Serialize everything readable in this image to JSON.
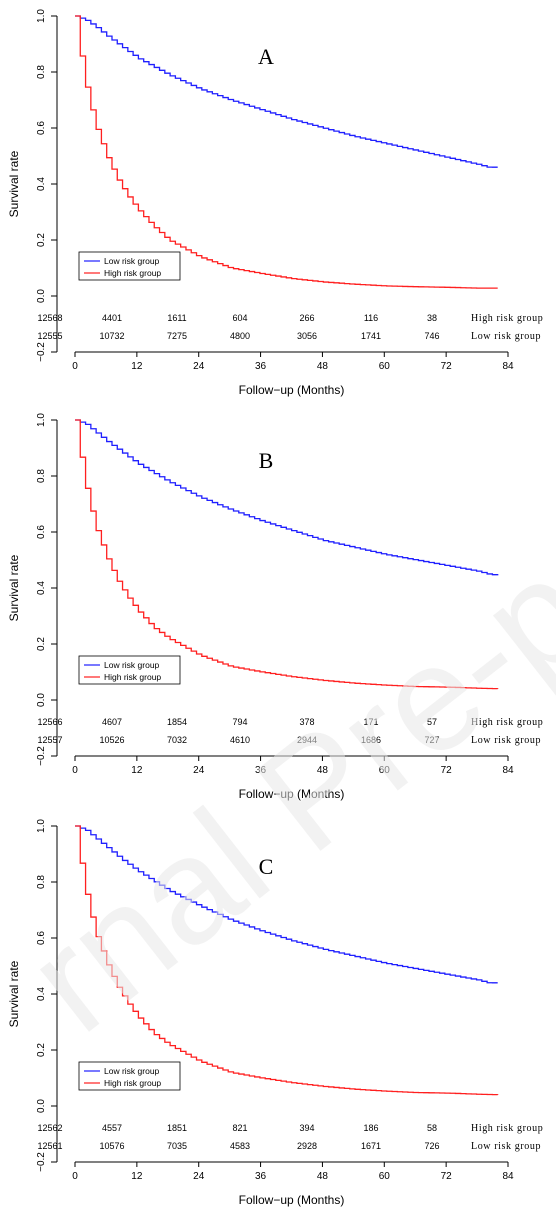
{
  "watermark": {
    "text": "Journal Pre-proof",
    "visible_text": "rnal Pre-pr",
    "color": "#e8e8e8"
  },
  "colors": {
    "low_risk": "#1f1fff",
    "high_risk": "#ff1f1f",
    "axis": "#000000"
  },
  "chart_data": [
    {
      "type": "line",
      "panel_label": "A",
      "ylabel": "Survival rate",
      "xlabel": "Follow−up (Months)",
      "xlim": [
        0,
        84
      ],
      "ylim": [
        -0.2,
        1.0
      ],
      "xticks": [
        "0",
        "12",
        "24",
        "36",
        "48",
        "60",
        "72",
        "84"
      ],
      "yticks": [
        "−0.2",
        "0.0",
        "0.2",
        "0.4",
        "0.6",
        "0.8",
        "1.0"
      ],
      "legend": {
        "position": "bottom-left",
        "entries": [
          "Low risk group",
          "High risk group"
        ]
      },
      "series": [
        {
          "name": "Low risk group",
          "color": "#1f1fff",
          "x": [
            0,
            2,
            4,
            6,
            9,
            12,
            18,
            24,
            30,
            36,
            42,
            48,
            54,
            60,
            66,
            72,
            78,
            80,
            82
          ],
          "values": [
            1.0,
            0.985,
            0.96,
            0.93,
            0.89,
            0.85,
            0.79,
            0.74,
            0.7,
            0.665,
            0.63,
            0.6,
            0.57,
            0.545,
            0.52,
            0.495,
            0.47,
            0.46,
            0.46
          ]
        },
        {
          "name": "High risk group",
          "color": "#ff1f1f",
          "x": [
            0,
            1,
            2,
            3,
            4,
            5,
            6,
            8,
            10,
            12,
            15,
            18,
            24,
            30,
            36,
            42,
            48,
            54,
            60,
            66,
            72,
            78,
            82
          ],
          "values": [
            1.0,
            0.86,
            0.75,
            0.67,
            0.6,
            0.55,
            0.5,
            0.42,
            0.36,
            0.31,
            0.25,
            0.2,
            0.14,
            0.1,
            0.08,
            0.062,
            0.05,
            0.042,
            0.036,
            0.033,
            0.031,
            0.028,
            0.028
          ]
        }
      ],
      "risk_table": [
        {
          "label": "High risk group",
          "counts": [
            "12568",
            "4401",
            "1611",
            "604",
            "266",
            "116",
            "38"
          ]
        },
        {
          "label": "Low risk group",
          "counts": [
            "12555",
            "10732",
            "7275",
            "4800",
            "3056",
            "1741",
            "746"
          ]
        }
      ]
    },
    {
      "type": "line",
      "panel_label": "B",
      "ylabel": "Survival rate",
      "xlabel": "Follow−up (Months)",
      "xlim": [
        0,
        84
      ],
      "ylim": [
        -0.2,
        1.0
      ],
      "xticks": [
        "0",
        "12",
        "24",
        "36",
        "48",
        "60",
        "72",
        "84"
      ],
      "yticks": [
        "−0.2",
        "0.0",
        "0.2",
        "0.4",
        "0.6",
        "0.8",
        "1.0"
      ],
      "legend": {
        "position": "bottom-left",
        "entries": [
          "Low risk group",
          "High risk group"
        ]
      },
      "series": [
        {
          "name": "Low risk group",
          "color": "#1f1fff",
          "x": [
            0,
            2,
            4,
            6,
            9,
            12,
            18,
            24,
            30,
            36,
            42,
            48,
            54,
            60,
            66,
            72,
            78,
            80,
            82
          ],
          "values": [
            1.0,
            0.985,
            0.955,
            0.925,
            0.885,
            0.845,
            0.78,
            0.725,
            0.68,
            0.64,
            0.605,
            0.57,
            0.545,
            0.52,
            0.5,
            0.48,
            0.46,
            0.45,
            0.445
          ]
        },
        {
          "name": "High risk group",
          "color": "#ff1f1f",
          "x": [
            0,
            1,
            2,
            3,
            4,
            5,
            6,
            8,
            10,
            12,
            15,
            18,
            24,
            30,
            36,
            42,
            48,
            54,
            60,
            66,
            72,
            78,
            82
          ],
          "values": [
            1.0,
            0.87,
            0.76,
            0.68,
            0.61,
            0.56,
            0.51,
            0.43,
            0.37,
            0.32,
            0.26,
            0.22,
            0.16,
            0.12,
            0.1,
            0.083,
            0.07,
            0.06,
            0.053,
            0.048,
            0.046,
            0.042,
            0.04
          ]
        }
      ],
      "risk_table": [
        {
          "label": "High risk group",
          "counts": [
            "12566",
            "4607",
            "1854",
            "794",
            "378",
            "171",
            "57"
          ]
        },
        {
          "label": "Low risk group",
          "counts": [
            "12557",
            "10526",
            "7032",
            "4610",
            "2944",
            "1686",
            "727"
          ]
        }
      ]
    },
    {
      "type": "line",
      "panel_label": "C",
      "ylabel": "Survival rate",
      "xlabel": "Follow−up (Months)",
      "xlim": [
        0,
        84
      ],
      "ylim": [
        -0.2,
        1.0
      ],
      "xticks": [
        "0",
        "12",
        "24",
        "36",
        "48",
        "60",
        "72",
        "84"
      ],
      "yticks": [
        "−0.2",
        "0.0",
        "0.2",
        "0.4",
        "0.6",
        "0.8",
        "1.0"
      ],
      "legend": {
        "position": "bottom-left",
        "entries": [
          "Low risk group",
          "High risk group"
        ]
      },
      "series": [
        {
          "name": "Low risk group",
          "color": "#1f1fff",
          "x": [
            0,
            2,
            4,
            6,
            9,
            12,
            18,
            24,
            30,
            36,
            42,
            48,
            54,
            60,
            66,
            72,
            78,
            80,
            82
          ],
          "values": [
            1.0,
            0.985,
            0.955,
            0.925,
            0.88,
            0.84,
            0.77,
            0.715,
            0.665,
            0.625,
            0.59,
            0.56,
            0.535,
            0.51,
            0.49,
            0.47,
            0.45,
            0.44,
            0.44
          ]
        },
        {
          "name": "High risk group",
          "color": "#ff1f1f",
          "x": [
            0,
            1,
            2,
            3,
            4,
            5,
            6,
            8,
            10,
            12,
            15,
            18,
            24,
            30,
            36,
            42,
            48,
            54,
            60,
            66,
            72,
            78,
            82
          ],
          "values": [
            1.0,
            0.87,
            0.76,
            0.68,
            0.61,
            0.56,
            0.51,
            0.43,
            0.37,
            0.32,
            0.26,
            0.22,
            0.16,
            0.12,
            0.1,
            0.083,
            0.07,
            0.06,
            0.053,
            0.048,
            0.046,
            0.042,
            0.04
          ]
        }
      ],
      "risk_table": [
        {
          "label": "High risk group",
          "counts": [
            "12562",
            "4557",
            "1851",
            "821",
            "394",
            "186",
            "58"
          ]
        },
        {
          "label": "Low risk group",
          "counts": [
            "12561",
            "10576",
            "7035",
            "4583",
            "2928",
            "1671",
            "726"
          ]
        }
      ]
    }
  ]
}
